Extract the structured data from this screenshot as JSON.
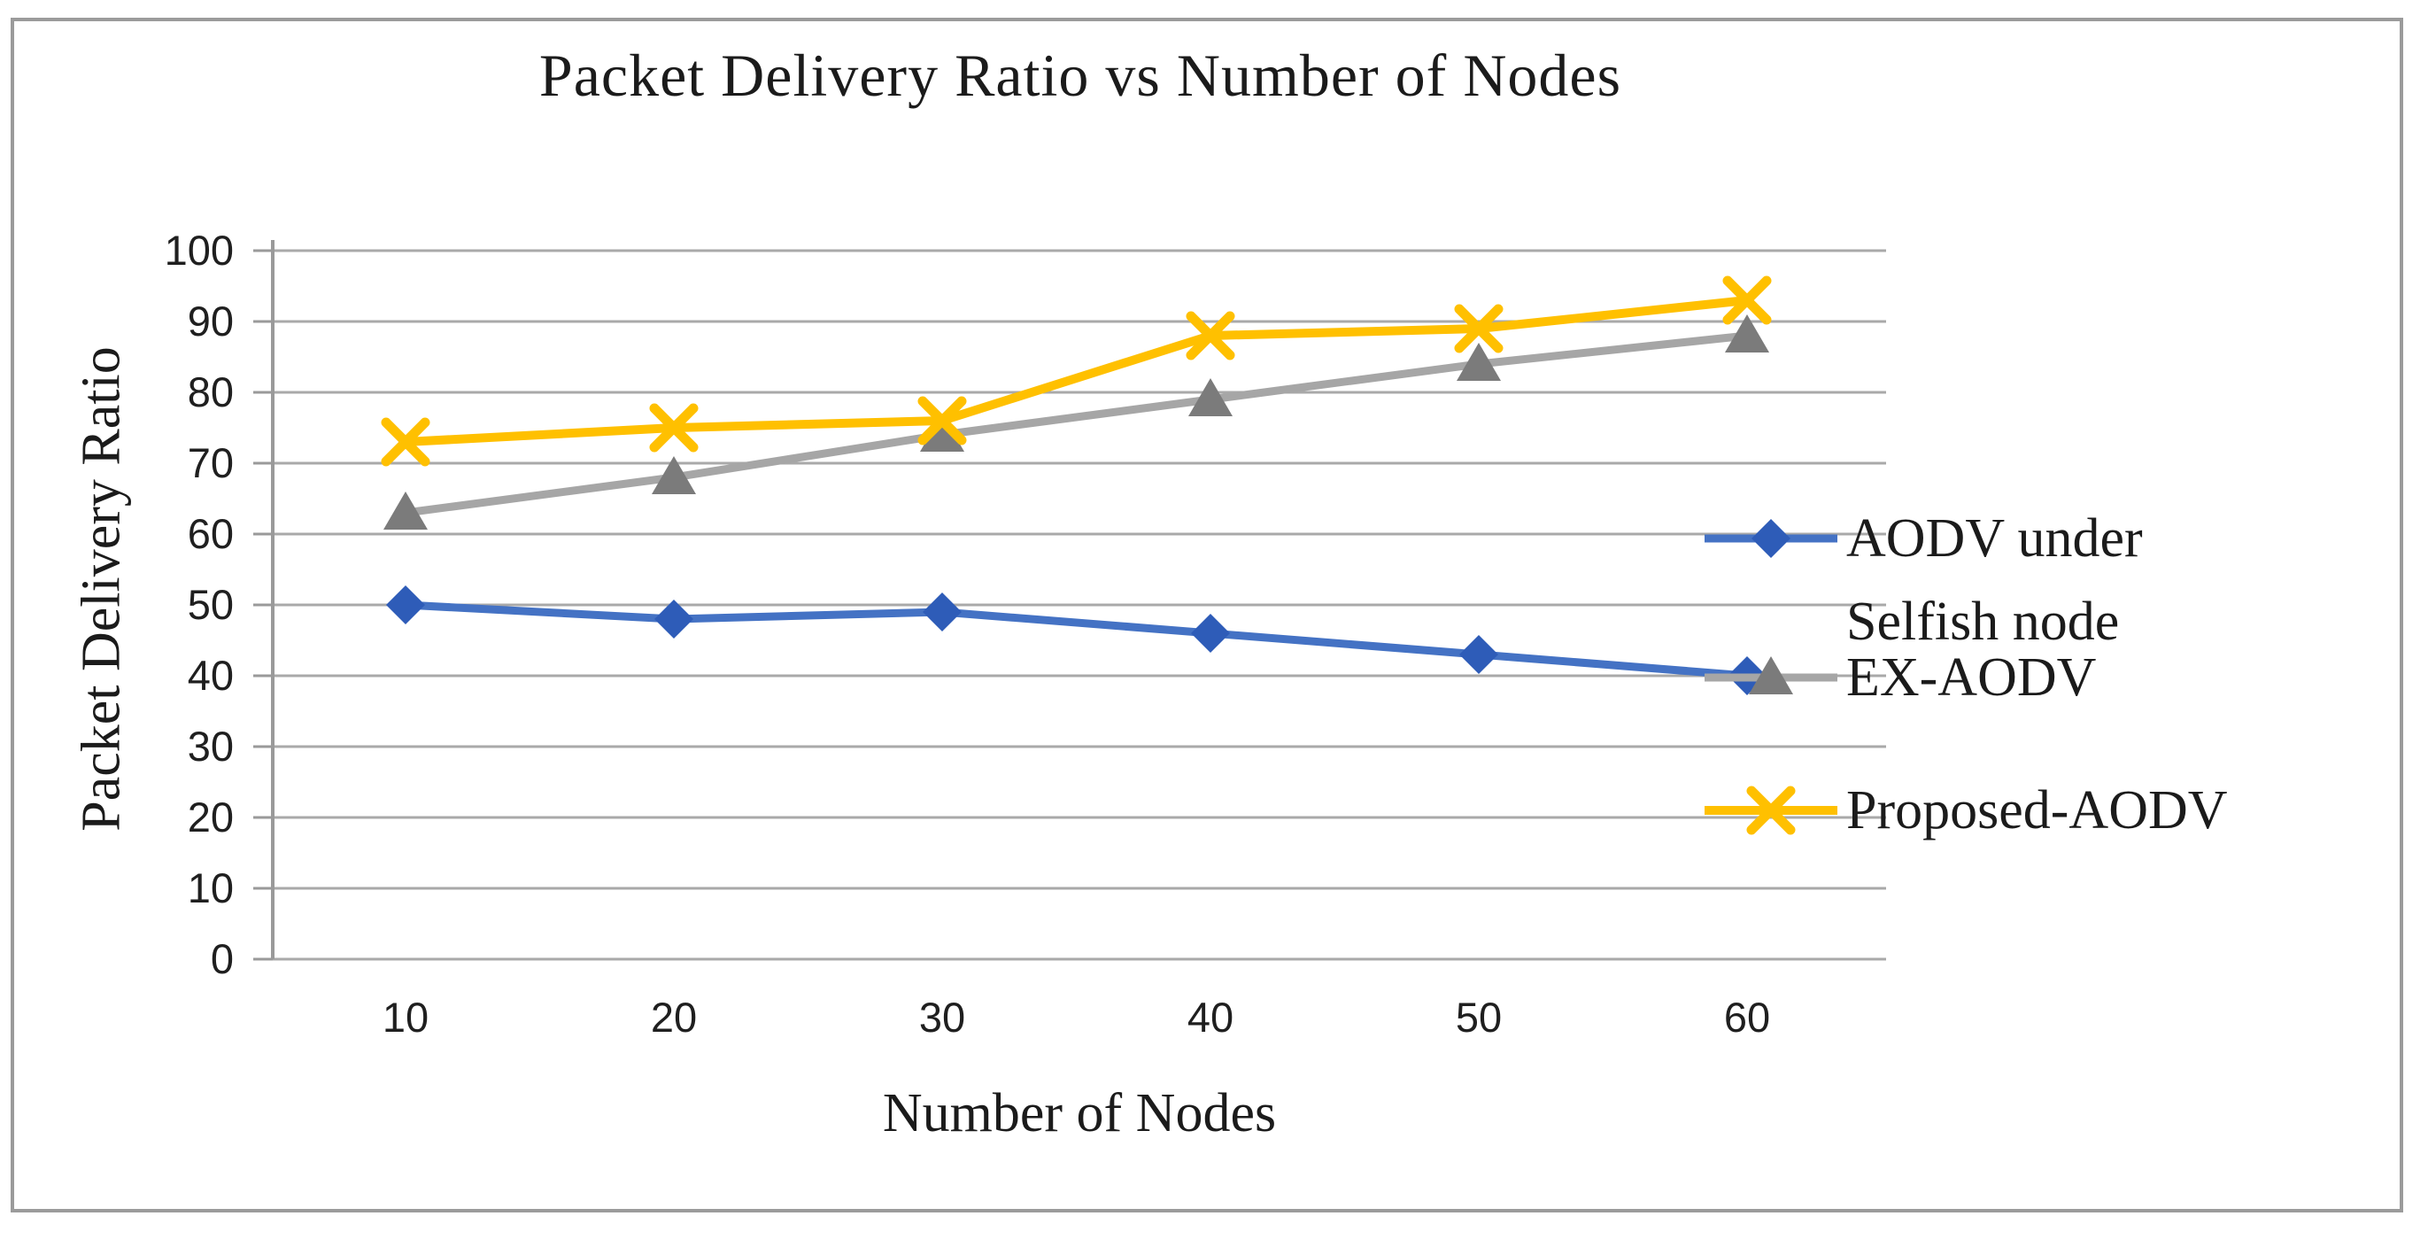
{
  "figure": {
    "title": "Packet Delivery Ratio vs Number of Nodes"
  },
  "chart_data": {
    "type": "line",
    "title": "Packet Delivery Ratio vs Number of Nodes",
    "xlabel": "Number of Nodes",
    "ylabel": "Packet Delivery Ratio",
    "categories": [
      10,
      20,
      30,
      40,
      50,
      60
    ],
    "x_tick_labels": [
      "10",
      "20",
      "30",
      "40",
      "50",
      "60"
    ],
    "y_ticks": [
      0,
      10,
      20,
      30,
      40,
      50,
      60,
      70,
      80,
      90,
      100
    ],
    "ylim": [
      0,
      100
    ],
    "grid": "horizontal",
    "legend_position": "right",
    "series": [
      {
        "name": "AODV under Selfish node",
        "legend_line1": "AODV under",
        "legend_line2": "Selfish node",
        "values": [
          50,
          48,
          49,
          46,
          43,
          40
        ],
        "color": "#4472c4",
        "marker": "diamond",
        "marker_color": "#2e5cb8"
      },
      {
        "name": "EX-AODV",
        "legend_line1": "EX-AODV",
        "legend_line2": "",
        "values": [
          63,
          68,
          74,
          79,
          84,
          88
        ],
        "color": "#a6a6a6",
        "marker": "triangle",
        "marker_color": "#7b7b7b"
      },
      {
        "name": "Proposed-AODV",
        "legend_line1": "Proposed-AODV",
        "legend_line2": "",
        "values": [
          73,
          75,
          76,
          88,
          89,
          93
        ],
        "color": "#ffc000",
        "marker": "x",
        "marker_color": "#ffc000"
      }
    ],
    "colors": {
      "gridline": "#a9a9a9",
      "axis": "#9a9a9a",
      "frame_border": "#9b9b9b",
      "text": "#1b1b1b",
      "tick_text": "#1f1f1f",
      "background": "#ffffff"
    }
  }
}
